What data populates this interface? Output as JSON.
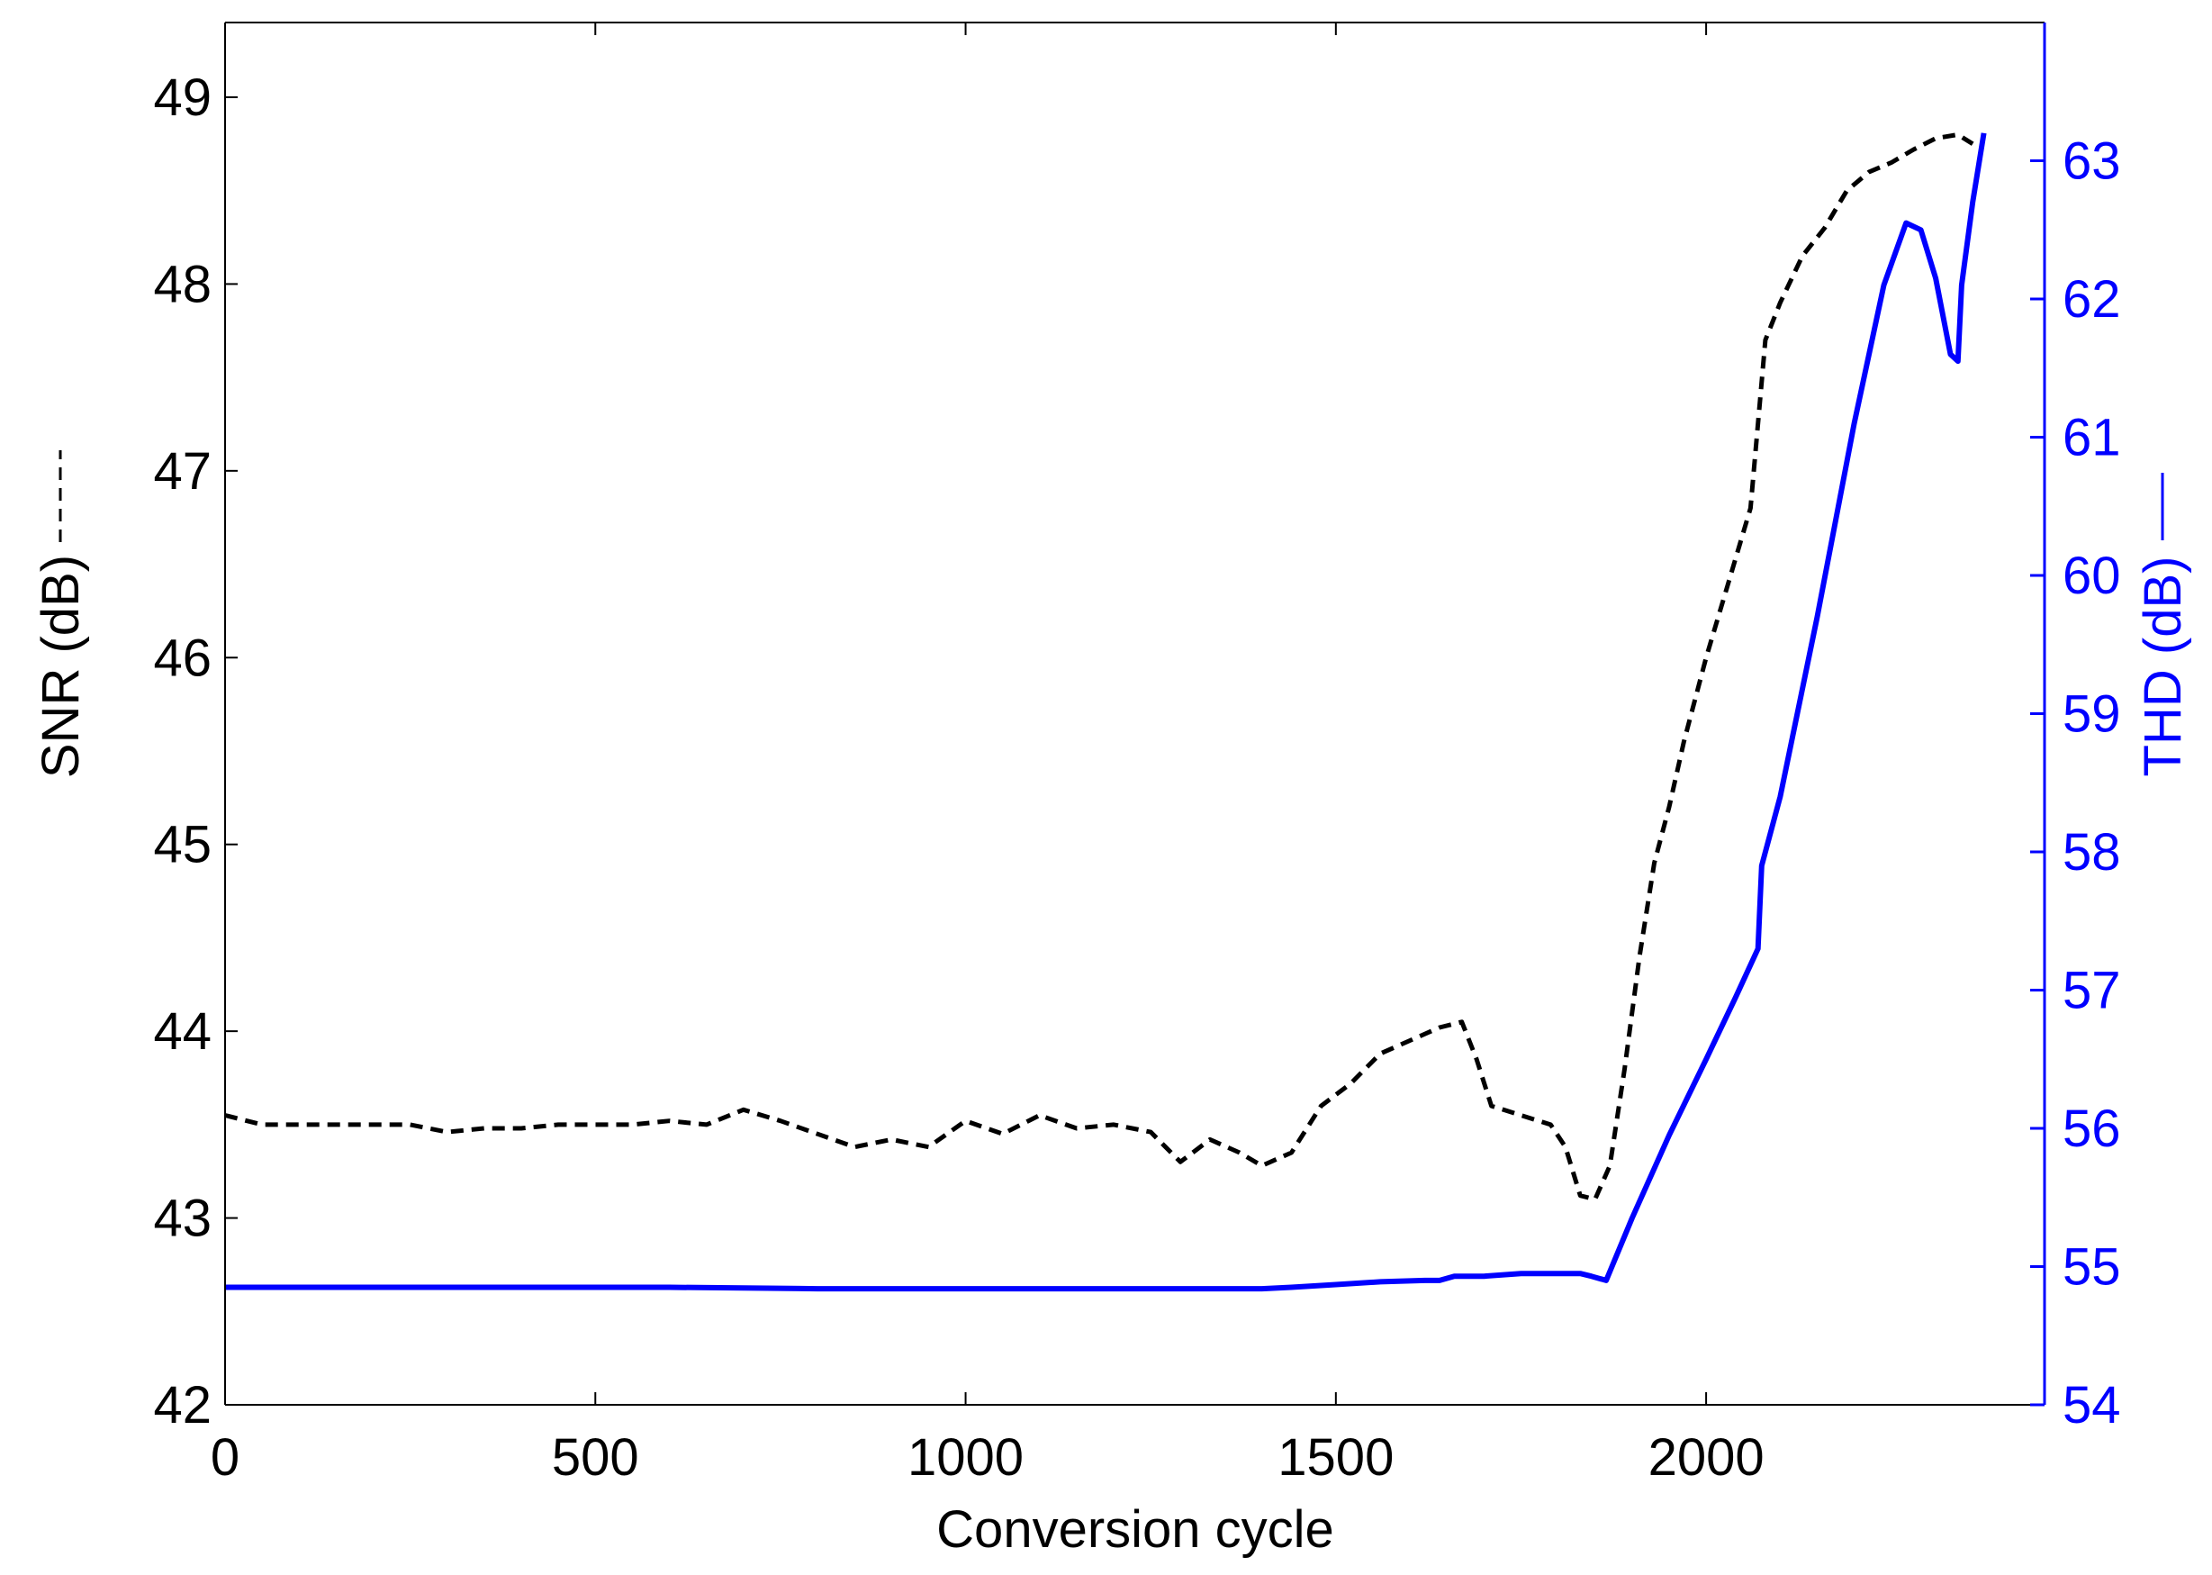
{
  "chart_data": {
    "type": "line",
    "title": "",
    "xlabel": "Conversion cycle",
    "ylabel_left": "SNR (dB)",
    "ylabel_right": "THD (dB)",
    "xlim": [
      0,
      2457
    ],
    "ylim_left": [
      42,
      49.4
    ],
    "ylim_right": [
      54,
      64
    ],
    "x_ticks": [
      0,
      500,
      1000,
      1500,
      2000
    ],
    "y_ticks_left": [
      42,
      43,
      44,
      45,
      46,
      47,
      48,
      49
    ],
    "y_ticks_right": [
      54,
      55,
      56,
      57,
      58,
      59,
      60,
      61,
      62,
      63
    ],
    "grid": false,
    "colors": {
      "snr": "#000000",
      "thd": "#0000ff"
    },
    "series": [
      {
        "axis": "left",
        "style": "dashed",
        "x": [
          0,
          50,
          100,
          150,
          200,
          250,
          300,
          350,
          400,
          450,
          500,
          550,
          600,
          650,
          700,
          750,
          800,
          850,
          900,
          950,
          1000,
          1050,
          1100,
          1150,
          1200,
          1250,
          1290,
          1330,
          1370,
          1400,
          1440,
          1480,
          1520,
          1560,
          1600,
          1640,
          1670,
          1690,
          1710,
          1750,
          1790,
          1810,
          1830,
          1850,
          1870,
          1890,
          1910,
          1930,
          1950,
          1970,
          2000,
          2030,
          2060,
          2080,
          2100,
          2130,
          2160,
          2190,
          2220,
          2250,
          2280,
          2310,
          2340,
          2360
        ],
        "values": [
          43.55,
          43.5,
          43.5,
          43.5,
          43.5,
          43.5,
          43.46,
          43.48,
          43.48,
          43.5,
          43.5,
          43.5,
          43.52,
          43.5,
          43.58,
          43.52,
          43.45,
          43.38,
          43.42,
          43.38,
          43.52,
          43.45,
          43.55,
          43.48,
          43.5,
          43.46,
          43.3,
          43.42,
          43.35,
          43.28,
          43.35,
          43.6,
          43.72,
          43.88,
          43.95,
          44.02,
          44.05,
          43.85,
          43.6,
          43.55,
          43.5,
          43.38,
          43.12,
          43.1,
          43.28,
          43.8,
          44.4,
          44.9,
          45.2,
          45.55,
          46.0,
          46.4,
          46.8,
          47.7,
          47.9,
          48.15,
          48.3,
          48.5,
          48.6,
          48.65,
          48.72,
          48.78,
          48.8,
          48.75
        ]
      },
      {
        "axis": "right",
        "style": "solid",
        "x": [
          0,
          200,
          400,
          600,
          800,
          1000,
          1200,
          1400,
          1440,
          1500,
          1560,
          1620,
          1640,
          1660,
          1700,
          1750,
          1800,
          1830,
          1845,
          1865,
          1900,
          1950,
          2000,
          2040,
          2070,
          2075,
          2100,
          2150,
          2200,
          2240,
          2270,
          2290,
          2310,
          2330,
          2340,
          2345,
          2360,
          2375
        ],
        "values": [
          54.85,
          54.85,
          54.85,
          54.85,
          54.84,
          54.84,
          54.84,
          54.84,
          54.85,
          54.87,
          54.89,
          54.9,
          54.9,
          54.93,
          54.93,
          54.95,
          54.95,
          54.95,
          54.93,
          54.9,
          55.35,
          55.95,
          56.5,
          56.95,
          57.3,
          57.9,
          58.4,
          59.7,
          61.1,
          62.1,
          62.55,
          62.5,
          62.15,
          61.6,
          61.55,
          62.1,
          62.7,
          63.2
        ]
      }
    ]
  }
}
